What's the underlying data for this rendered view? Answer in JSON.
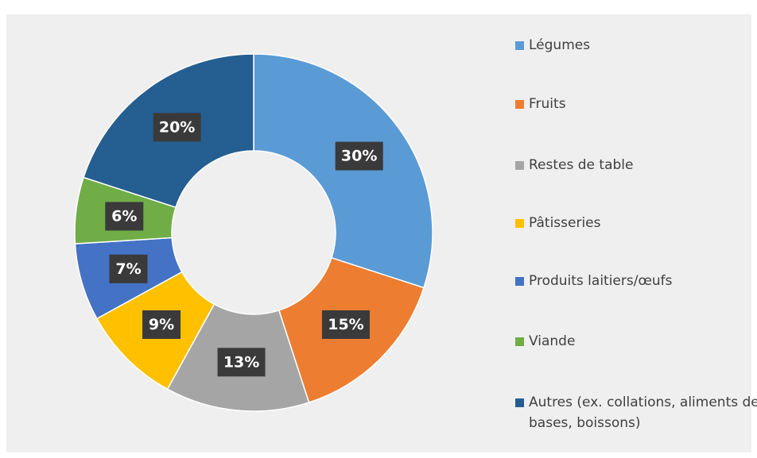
{
  "chart_data": {
    "type": "donut",
    "categories": [
      "Légumes",
      "Fruits",
      "Restes de table",
      "Pâtisseries",
      "Produits laitiers/œufs",
      "Viande",
      "Autres (ex. collations, aliments de bases, boissons)"
    ],
    "values": [
      30,
      15,
      13,
      9,
      7,
      6,
      20
    ],
    "value_labels": [
      "30%",
      "15%",
      "13%",
      "9%",
      "7%",
      "6%",
      "20%"
    ],
    "colors": [
      "#5b9bd5",
      "#ed7d31",
      "#a5a5a5",
      "#ffc000",
      "#4472c4",
      "#70ad47",
      "#255e91"
    ],
    "legend": "right"
  }
}
